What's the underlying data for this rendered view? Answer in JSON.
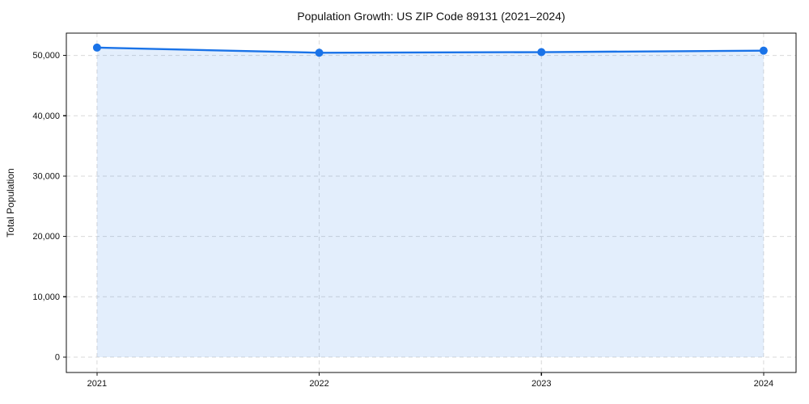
{
  "chart_data": {
    "type": "area",
    "title": "Population Growth: US ZIP Code 89131 (2021–2024)",
    "xlabel": "",
    "ylabel": "Total Population",
    "x": [
      2021,
      2022,
      2023,
      2024
    ],
    "x_tick_labels": [
      "2021",
      "2022",
      "2023",
      "2024"
    ],
    "series": [
      {
        "name": "Total Population",
        "values": [
          51300,
          50450,
          50550,
          50800
        ]
      }
    ],
    "yticks": [
      0,
      10000,
      20000,
      30000,
      40000,
      50000
    ],
    "ytick_labels": [
      "0",
      "10,000",
      "20,000",
      "30,000",
      "40,000",
      "50,000"
    ],
    "xlim": [
      2020.862,
      2024.146
    ],
    "ylim": [
      -2550,
      53700
    ],
    "grid": "dashed, both axes",
    "legend_position": "none",
    "marker": "circle",
    "colors": {
      "line": "#1a73e8",
      "marker": "#1a73e8",
      "fill": "#1a73e8",
      "fill_opacity": "0.12",
      "grid": "#d9d9d9",
      "spine": "#111111",
      "text": "#111111",
      "background": "#ffffff"
    }
  }
}
